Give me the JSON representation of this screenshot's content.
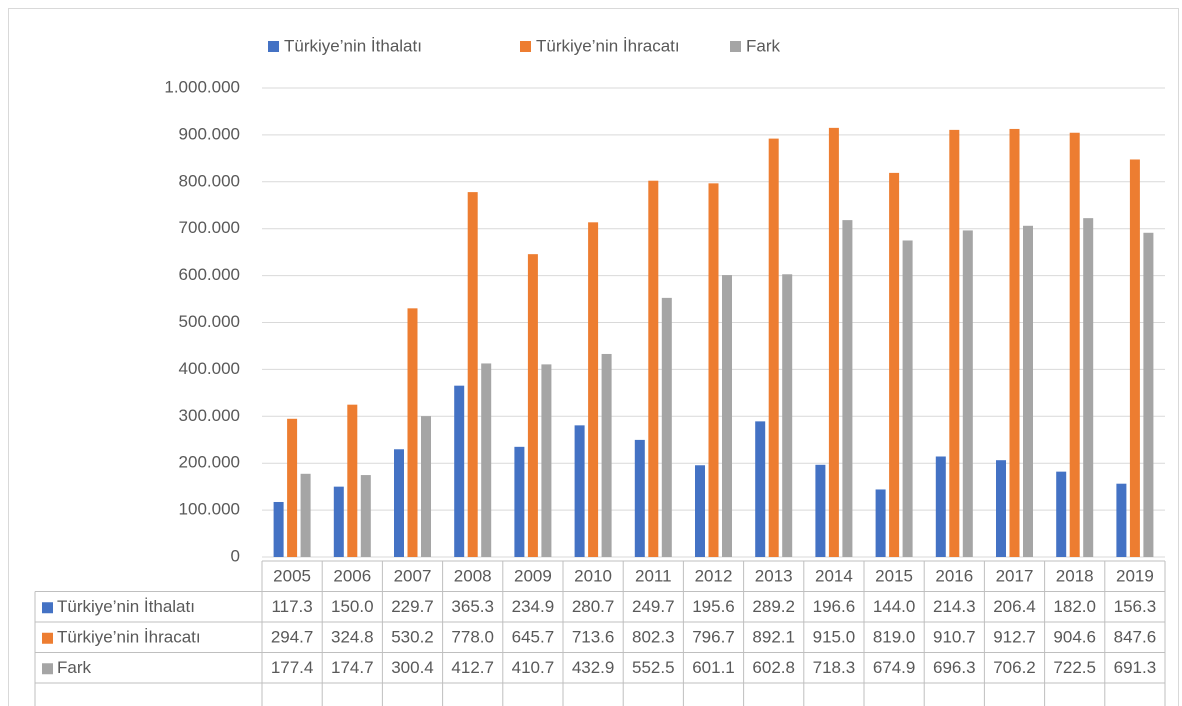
{
  "chart_data": {
    "type": "bar",
    "categories": [
      "2005",
      "2006",
      "2007",
      "2008",
      "2009",
      "2010",
      "2011",
      "2012",
      "2013",
      "2014",
      "2015",
      "2016",
      "2017",
      "2018",
      "2019"
    ],
    "series": [
      {
        "name": "Türkiye’nin İthalatı",
        "color": "#4472c4",
        "values": [
          117300,
          150000,
          229700,
          365300,
          234900,
          280700,
          249700,
          195600,
          289200,
          196600,
          144000,
          214300,
          206400,
          182000,
          156300
        ],
        "value_labels": [
          "117.3",
          "150.0",
          "229.7",
          "365.3",
          "234.9",
          "280.7",
          "249.7",
          "195.6",
          "289.2",
          "196.6",
          "144.0",
          "214.3",
          "206.4",
          "182.0",
          "156.3"
        ]
      },
      {
        "name": "Türkiye’nin İhracatı",
        "color": "#ed7d31",
        "values": [
          294700,
          324800,
          530200,
          778000,
          645700,
          713600,
          802300,
          796700,
          892100,
          915000,
          819000,
          910700,
          912700,
          904600,
          847600
        ],
        "value_labels": [
          "294.7",
          "324.8",
          "530.2",
          "778.0",
          "645.7",
          "713.6",
          "802.3",
          "796.7",
          "892.1",
          "915.0",
          "819.0",
          "910.7",
          "912.7",
          "904.6",
          "847.6"
        ]
      },
      {
        "name": "Fark",
        "color": "#a5a5a5",
        "values": [
          177400,
          174700,
          300400,
          412700,
          410700,
          432900,
          552500,
          601100,
          602800,
          718300,
          674900,
          696300,
          706200,
          722500,
          691300
        ],
        "value_labels": [
          "177.4",
          "174.7",
          "300.4",
          "412.7",
          "410.7",
          "432.9",
          "552.5",
          "601.1",
          "602.8",
          "718.3",
          "674.9",
          "696.3",
          "706.2",
          "722.5",
          "691.3"
        ]
      }
    ],
    "ylim": [
      0,
      1000000
    ],
    "yticks": [
      0,
      {
        "value": 100000,
        "label": "100.000"
      },
      {
        "value": 200000,
        "label": "200.000"
      },
      {
        "value": 300000,
        "label": "300.000"
      },
      {
        "value": 400000,
        "label": "400.000"
      },
      {
        "value": 500000,
        "label": "500.000"
      },
      {
        "value": 600000,
        "label": "600.000"
      },
      {
        "value": 700000,
        "label": "700.000"
      },
      {
        "value": 800000,
        "label": "800.000"
      },
      {
        "value": 900000,
        "label": "900.000"
      },
      {
        "value": 1000000,
        "label": "1.000.000"
      }
    ],
    "grid": true,
    "legend": "top"
  }
}
